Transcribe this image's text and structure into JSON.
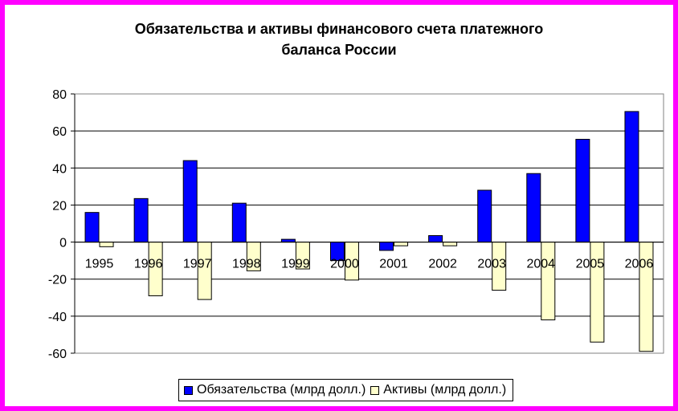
{
  "colors": {
    "frame": "#ff00ff",
    "liabilities": "#0000ff",
    "assets": "#ffffcc",
    "grid": "#000000"
  },
  "chart_data": {
    "type": "bar",
    "title_lines": [
      "Обязательства и активы финансового счета платежного",
      "баланса России"
    ],
    "ylabel": "",
    "xlabel": "",
    "ylim": [
      -60,
      80
    ],
    "yticks": [
      80,
      60,
      40,
      20,
      0,
      -20,
      -40,
      -60
    ],
    "grid": true,
    "legend_position": "bottom",
    "categories": [
      "1995",
      "1996",
      "1997",
      "1998",
      "1999",
      "2000",
      "2001",
      "2002",
      "2003",
      "2004",
      "2005",
      "2006"
    ],
    "series": [
      {
        "name": "Обязательства (млрд  долл.)",
        "values": [
          16,
          23.5,
          44,
          21,
          1.5,
          -10,
          -4.5,
          3.5,
          28,
          37,
          55.5,
          70.5
        ]
      },
      {
        "name": "Активы  (млрд  долл.)",
        "values": [
          -2.5,
          -29,
          -31,
          -15.5,
          -14.5,
          -20.5,
          -2,
          -2,
          -26,
          -42,
          -54,
          -59
        ]
      }
    ]
  }
}
